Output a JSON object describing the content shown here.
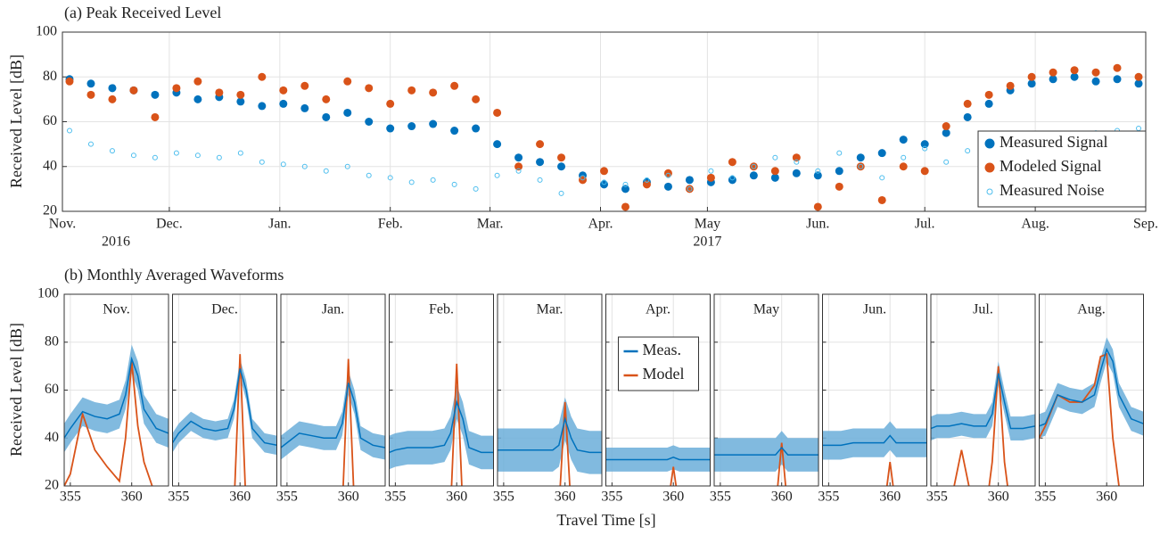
{
  "chart_data": [
    {
      "type": "scatter",
      "title": "(a) Peak Received Level",
      "ylabel": "Received Level [dB]",
      "xlim": [
        0,
        304
      ],
      "ylim": [
        20,
        100
      ],
      "yticks": [
        20,
        40,
        60,
        80,
        100
      ],
      "grid": true,
      "legend": "lower right",
      "xticks": [
        {
          "value": 0,
          "label": "Nov."
        },
        {
          "value": 30,
          "label": "Dec."
        },
        {
          "value": 61,
          "label": "Jan."
        },
        {
          "value": 92,
          "label": "Feb."
        },
        {
          "value": 120,
          "label": "Mar."
        },
        {
          "value": 151,
          "label": "Apr."
        },
        {
          "value": 181,
          "label": "May"
        },
        {
          "value": 212,
          "label": "Jun."
        },
        {
          "value": 242,
          "label": "Jul."
        },
        {
          "value": 273,
          "label": "Aug."
        },
        {
          "value": 304,
          "label": "Sep."
        }
      ],
      "year_labels": [
        "2016",
        "2017"
      ],
      "x": [
        2,
        8,
        14,
        20,
        26,
        32,
        38,
        44,
        50,
        56,
        62,
        68,
        74,
        80,
        86,
        92,
        98,
        104,
        110,
        116,
        122,
        128,
        134,
        140,
        146,
        152,
        158,
        164,
        170,
        176,
        182,
        188,
        194,
        200,
        206,
        212,
        218,
        224,
        230,
        236,
        242,
        248,
        254,
        260,
        266,
        272,
        278,
        284,
        290,
        296,
        302
      ],
      "series": [
        {
          "name": "Measured Signal",
          "color": "#0072bd",
          "marker": "filled",
          "values": [
            79,
            77,
            75,
            74,
            72,
            73,
            70,
            71,
            69,
            67,
            68,
            66,
            62,
            64,
            60,
            57,
            58,
            59,
            56,
            57,
            50,
            44,
            42,
            40,
            36,
            32,
            30,
            33,
            31,
            34,
            33,
            34,
            36,
            35,
            37,
            36,
            38,
            44,
            46,
            52,
            50,
            55,
            62,
            68,
            74,
            77,
            79,
            80,
            78,
            79,
            77
          ]
        },
        {
          "name": "Modeled Signal",
          "color": "#d95319",
          "marker": "filled",
          "values": [
            78,
            72,
            70,
            74,
            62,
            75,
            78,
            73,
            72,
            80,
            74,
            76,
            70,
            78,
            75,
            68,
            74,
            73,
            76,
            70,
            64,
            40,
            50,
            44,
            34,
            38,
            22,
            32,
            37,
            30,
            35,
            42,
            40,
            38,
            44,
            22,
            31,
            40,
            25,
            40,
            38,
            58,
            68,
            72,
            76,
            80,
            82,
            83,
            82,
            84,
            80
          ]
        },
        {
          "name": "Measured Noise",
          "color": "#4dbeee",
          "marker": "hollow",
          "values": [
            56,
            50,
            47,
            45,
            44,
            46,
            45,
            44,
            46,
            42,
            41,
            40,
            38,
            40,
            36,
            35,
            33,
            34,
            32,
            30,
            36,
            38,
            34,
            28,
            35,
            33,
            32,
            34,
            36,
            30,
            38,
            35,
            40,
            44,
            42,
            38,
            46,
            40,
            35,
            44,
            48,
            42,
            47,
            50,
            46,
            52,
            50,
            54,
            55,
            56,
            57
          ]
        }
      ]
    },
    {
      "type": "panels",
      "title": "(b) Monthly Averaged Waveforms",
      "ylabel": "Received Level [dB]",
      "xlabel": "Travel Time [s]",
      "xlim": [
        354.5,
        363
      ],
      "xticks": [
        355,
        360
      ],
      "ylim": [
        20,
        100
      ],
      "yticks": [
        20,
        40,
        60,
        80,
        100
      ],
      "grid": true,
      "x": [
        354.5,
        355,
        356,
        357,
        358,
        359,
        359.5,
        360,
        360.5,
        361,
        362,
        363
      ],
      "series": [
        {
          "name": "Meas.",
          "color": "#0072bd",
          "band_color": "#6baed9"
        },
        {
          "name": "Model",
          "color": "#d95319"
        }
      ],
      "panels": [
        {
          "title": "Nov.",
          "spread": 6,
          "meas": [
            40,
            44,
            51,
            49,
            48,
            50,
            58,
            73,
            66,
            52,
            44,
            42
          ],
          "model": [
            20,
            25,
            50,
            35,
            28,
            22,
            40,
            72,
            45,
            30,
            15,
            15
          ]
        },
        {
          "title": "Dec.",
          "spread": 4,
          "meas": [
            38,
            42,
            47,
            44,
            43,
            44,
            52,
            69,
            60,
            44,
            38,
            37
          ],
          "model": [
            10,
            10,
            15,
            10,
            10,
            10,
            10,
            75,
            10,
            10,
            10,
            10
          ]
        },
        {
          "title": "Jan.",
          "spread": 5,
          "meas": [
            36,
            38,
            42,
            41,
            40,
            40,
            46,
            63,
            55,
            40,
            37,
            36
          ],
          "model": [
            10,
            10,
            10,
            10,
            10,
            10,
            10,
            73,
            10,
            10,
            10,
            10
          ]
        },
        {
          "title": "Feb.",
          "spread": 7,
          "meas": [
            34,
            35,
            36,
            36,
            36,
            37,
            42,
            55,
            48,
            36,
            34,
            34
          ],
          "model": [
            10,
            10,
            10,
            10,
            10,
            10,
            10,
            71,
            10,
            10,
            10,
            10
          ]
        },
        {
          "title": "Mar.",
          "spread": 9,
          "meas": [
            35,
            35,
            35,
            35,
            35,
            35,
            37,
            48,
            40,
            35,
            34,
            34
          ],
          "model": [
            10,
            10,
            10,
            10,
            10,
            10,
            10,
            55,
            10,
            10,
            10,
            10
          ]
        },
        {
          "title": "Apr.",
          "spread": 5,
          "meas": [
            31,
            31,
            31,
            31,
            31,
            31,
            31,
            32,
            31,
            31,
            31,
            31
          ],
          "model": [
            10,
            10,
            10,
            10,
            10,
            10,
            10,
            28,
            10,
            10,
            10,
            10
          ]
        },
        {
          "title": "May",
          "spread": 7,
          "meas": [
            33,
            33,
            33,
            33,
            33,
            33,
            33,
            36,
            33,
            33,
            33,
            33
          ],
          "model": [
            10,
            10,
            10,
            10,
            10,
            10,
            10,
            38,
            10,
            10,
            10,
            10
          ]
        },
        {
          "title": "Jun.",
          "spread": 6,
          "meas": [
            37,
            37,
            37,
            38,
            38,
            38,
            38,
            41,
            38,
            38,
            38,
            38
          ],
          "model": [
            10,
            10,
            10,
            10,
            10,
            10,
            10,
            30,
            10,
            10,
            10,
            10
          ]
        },
        {
          "title": "Jul.",
          "spread": 5,
          "meas": [
            44,
            45,
            45,
            46,
            45,
            45,
            50,
            67,
            55,
            44,
            44,
            45
          ],
          "model": [
            10,
            10,
            10,
            35,
            10,
            10,
            30,
            70,
            30,
            10,
            10,
            10
          ]
        },
        {
          "title": "Aug.",
          "spread": 5,
          "meas": [
            45,
            46,
            58,
            56,
            55,
            58,
            68,
            77,
            72,
            58,
            48,
            46
          ],
          "model": [
            40,
            45,
            58,
            55,
            55,
            62,
            74,
            75,
            40,
            20,
            15,
            15
          ]
        }
      ]
    }
  ]
}
